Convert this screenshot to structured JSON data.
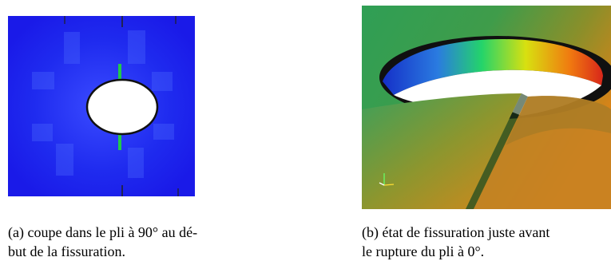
{
  "figures": [
    {
      "id": "a",
      "caption_line1": "(a)  coupe dans le pli à 90° au dé-",
      "caption_line2": "but de la fissuration."
    },
    {
      "id": "b",
      "caption_line1": "(b)  état de fissuration juste avant",
      "caption_line2": "le rupture du pli à 0°."
    }
  ],
  "colors": {
    "panel_a_background": "#1a1aee",
    "panel_a_hole": "#ffffff",
    "panel_a_crack": "#22c94a",
    "panel_b_surface_green": "#2e9c58",
    "panel_b_surface_orange": "#e07a14"
  }
}
